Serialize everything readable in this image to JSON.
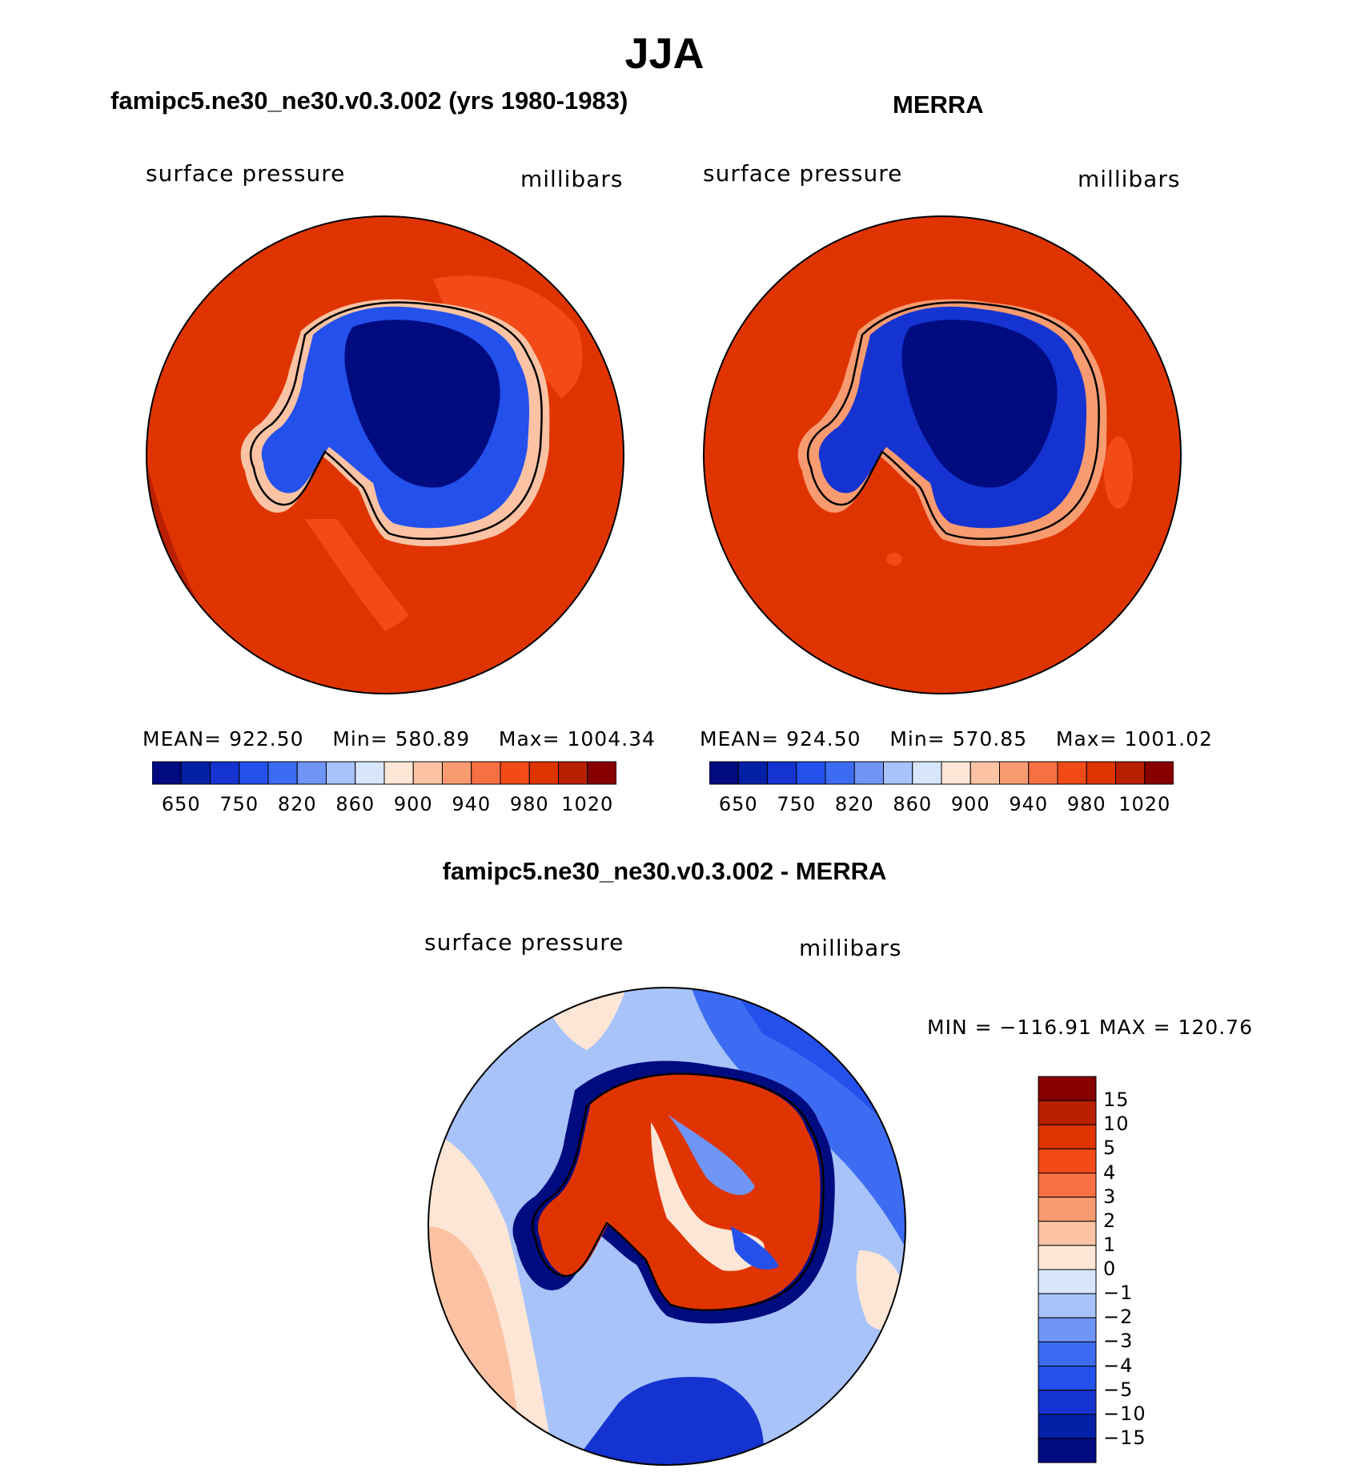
{
  "title": "JJA",
  "panels": {
    "model": {
      "title": "famipc5.ne30_ne30.v0.3.002 (yrs 1980-1983)",
      "variable": "surface pressure",
      "units": "millibars",
      "mean_label": "MEAN=",
      "mean": "922.50",
      "min_label": "Min=",
      "min": "580.89",
      "max_label": "Max=",
      "max": "1004.34"
    },
    "obs": {
      "title": "MERRA",
      "variable": "surface pressure",
      "units": "millibars",
      "mean_label": "MEAN=",
      "mean": "924.50",
      "min_label": "Min=",
      "min": "570.85",
      "max_label": "Max=",
      "max": "1001.02"
    },
    "diff": {
      "title": "famipc5.ne30_ne30.v0.3.002 - MERRA",
      "variable": "surface pressure",
      "units": "millibars",
      "minmax": "MIN = −116.91  MAX = 120.76"
    }
  },
  "colorbar": {
    "colors": [
      "#000b80",
      "#0320a6",
      "#1433d1",
      "#2450ec",
      "#3d6cf2",
      "#6f95f7",
      "#a7c3fa",
      "#d7e6fb",
      "#fde6d6",
      "#fbc3a3",
      "#f99b70",
      "#f76f43",
      "#f24b18",
      "#e03400",
      "#b82000",
      "#870000"
    ],
    "tick_labels": [
      "650",
      "750",
      "820",
      "860",
      "900",
      "940",
      "980",
      "1020"
    ]
  },
  "diff_colorbar": {
    "colors": [
      "#000b80",
      "#0320a6",
      "#1433d1",
      "#2450ec",
      "#3d6cf2",
      "#6f95f7",
      "#a7c3fa",
      "#d7e6fb",
      "#fde6d6",
      "#fbc3a3",
      "#f99b70",
      "#f76f43",
      "#f24b18",
      "#e03400",
      "#b82000",
      "#870000"
    ],
    "tick_labels": [
      "15",
      "10",
      "5",
      "4",
      "3",
      "2",
      "1",
      "0",
      "−1",
      "−2",
      "−3",
      "−4",
      "−5",
      "−10",
      "−15"
    ]
  }
}
